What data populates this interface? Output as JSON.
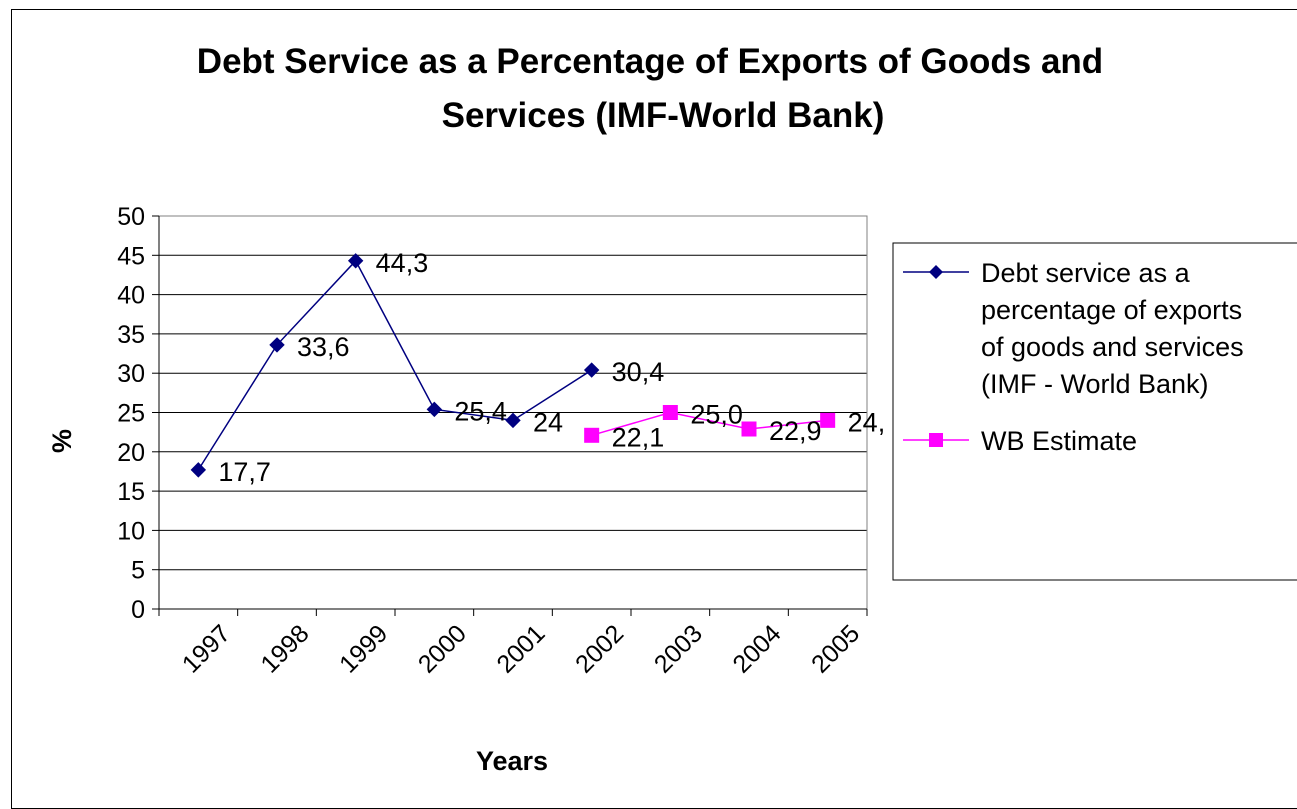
{
  "chart_data": {
    "type": "line",
    "title_lines": [
      "Debt Service as a Percentage of Exports of Goods and",
      "Services (IMF-World Bank)"
    ],
    "xlabel": "Years",
    "ylabel": "%",
    "categories": [
      "1997",
      "1998",
      "1999",
      "2000",
      "2001",
      "2002",
      "2003",
      "2004",
      "2005"
    ],
    "ylim": [
      0,
      50
    ],
    "yticks": [
      0,
      5,
      10,
      15,
      20,
      25,
      30,
      35,
      40,
      45,
      50
    ],
    "grid": true,
    "legend_placement": "right",
    "series": [
      {
        "name_lines": [
          "Debt service as a",
          "percentage of exports",
          "of goods and services",
          "(IMF - World Bank)"
        ],
        "color": "#000080",
        "marker": "diamond",
        "values": [
          17.7,
          33.6,
          44.3,
          25.4,
          24,
          30.4,
          null,
          null,
          null
        ],
        "labels": [
          "17,7",
          "33,6",
          "44,3",
          "25,4",
          "24",
          "30,4",
          "",
          "",
          ""
        ]
      },
      {
        "name_lines": [
          "WB Estimate"
        ],
        "color": "#FF00FF",
        "marker": "square",
        "values": [
          null,
          null,
          null,
          null,
          null,
          22.1,
          25.0,
          22.9,
          24
        ],
        "labels": [
          "",
          "",
          "",
          "",
          "",
          "22,1",
          "25,0",
          "22,9",
          "24,"
        ]
      }
    ]
  }
}
